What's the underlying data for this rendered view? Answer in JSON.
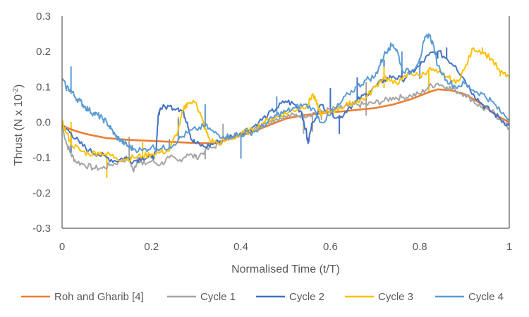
{
  "chart_data": {
    "type": "line",
    "xlabel": "Normalised Time (t/T)",
    "ylabel": {
      "base": "Thrust (N x 10",
      "sup": "-2",
      "end": ")"
    },
    "xlim": [
      0,
      1
    ],
    "ylim": [
      -0.3,
      0.3
    ],
    "x_ticks": [
      "0",
      "0.2",
      "0.4",
      "0.6",
      "0.8",
      "1"
    ],
    "y_ticks": [
      "0.3",
      "0.2",
      "0.1",
      "0.0",
      "-0.1",
      "-0.2",
      "-0.3"
    ],
    "grid": false,
    "legend_position": "bottom",
    "series": [
      {
        "name": "Roh and Gharib [4]",
        "color": "#ED7D31",
        "width": 2.6,
        "points": [
          [
            0,
            -0.01
          ],
          [
            0.03,
            -0.025
          ],
          [
            0.06,
            -0.035
          ],
          [
            0.1,
            -0.045
          ],
          [
            0.15,
            -0.05
          ],
          [
            0.2,
            -0.053
          ],
          [
            0.25,
            -0.056
          ],
          [
            0.3,
            -0.059
          ],
          [
            0.34,
            -0.06
          ],
          [
            0.38,
            -0.045
          ],
          [
            0.42,
            -0.03
          ],
          [
            0.46,
            -0.01
          ],
          [
            0.5,
            0.01
          ],
          [
            0.54,
            0.02
          ],
          [
            0.58,
            0.025
          ],
          [
            0.62,
            0.03
          ],
          [
            0.66,
            0.035
          ],
          [
            0.7,
            0.04
          ],
          [
            0.74,
            0.05
          ],
          [
            0.78,
            0.065
          ],
          [
            0.82,
            0.085
          ],
          [
            0.84,
            0.093
          ],
          [
            0.87,
            0.09
          ],
          [
            0.9,
            0.08
          ],
          [
            0.94,
            0.05
          ],
          [
            0.97,
            0.02
          ],
          [
            1.0,
            0.0
          ]
        ]
      },
      {
        "name": "Cycle 1",
        "color": "#A5A5A5",
        "width": 2,
        "points": [
          [
            0,
            -0.01
          ],
          [
            0.01,
            -0.06
          ],
          [
            0.02,
            -0.09
          ],
          [
            0.03,
            -0.11
          ],
          [
            0.05,
            -0.12
          ],
          [
            0.07,
            -0.13
          ],
          [
            0.09,
            -0.13
          ],
          [
            0.11,
            -0.12
          ],
          [
            0.13,
            -0.11
          ],
          [
            0.15,
            -0.1
          ],
          [
            0.16,
            -0.14
          ],
          [
            0.17,
            -0.1
          ],
          [
            0.18,
            -0.12
          ],
          [
            0.2,
            -0.11
          ],
          [
            0.22,
            -0.12
          ],
          [
            0.24,
            -0.1
          ],
          [
            0.26,
            -0.11
          ],
          [
            0.28,
            -0.09
          ],
          [
            0.3,
            -0.1
          ],
          [
            0.32,
            -0.08
          ],
          [
            0.34,
            -0.07
          ],
          [
            0.36,
            -0.05
          ],
          [
            0.38,
            -0.04
          ],
          [
            0.4,
            -0.03
          ],
          [
            0.42,
            -0.02
          ],
          [
            0.44,
            -0.01
          ],
          [
            0.46,
            0.0
          ],
          [
            0.48,
            0.01
          ],
          [
            0.5,
            0.015
          ],
          [
            0.52,
            0.02
          ],
          [
            0.54,
            0.02
          ],
          [
            0.56,
            0.025
          ],
          [
            0.58,
            0.03
          ],
          [
            0.6,
            0.035
          ],
          [
            0.62,
            0.04
          ],
          [
            0.64,
            0.045
          ],
          [
            0.66,
            0.05
          ],
          [
            0.68,
            0.05
          ],
          [
            0.7,
            0.055
          ],
          [
            0.72,
            0.06
          ],
          [
            0.74,
            0.07
          ],
          [
            0.76,
            0.07
          ],
          [
            0.78,
            0.075
          ],
          [
            0.8,
            0.08
          ],
          [
            0.82,
            0.1
          ],
          [
            0.84,
            0.11
          ],
          [
            0.86,
            0.1
          ],
          [
            0.88,
            0.09
          ],
          [
            0.9,
            0.08
          ],
          [
            0.92,
            0.06
          ],
          [
            0.94,
            0.04
          ],
          [
            0.96,
            0.03
          ],
          [
            0.98,
            0.01
          ],
          [
            1.0,
            -0.02
          ]
        ]
      },
      {
        "name": "Cycle 2",
        "color": "#4472C4",
        "width": 2,
        "points": [
          [
            0,
            -0.01
          ],
          [
            0.02,
            -0.03
          ],
          [
            0.04,
            -0.06
          ],
          [
            0.06,
            -0.08
          ],
          [
            0.08,
            -0.09
          ],
          [
            0.1,
            -0.1
          ],
          [
            0.12,
            -0.11
          ],
          [
            0.14,
            -0.1
          ],
          [
            0.16,
            -0.11
          ],
          [
            0.18,
            -0.1
          ],
          [
            0.2,
            -0.1
          ],
          [
            0.21,
            -0.09
          ],
          [
            0.215,
            0.02
          ],
          [
            0.22,
            0.04
          ],
          [
            0.24,
            0.045
          ],
          [
            0.26,
            0.04
          ],
          [
            0.27,
            0.03
          ],
          [
            0.28,
            0.0
          ],
          [
            0.29,
            -0.05
          ],
          [
            0.3,
            -0.06
          ],
          [
            0.32,
            -0.07
          ],
          [
            0.34,
            -0.06
          ],
          [
            0.36,
            -0.05
          ],
          [
            0.38,
            -0.04
          ],
          [
            0.4,
            -0.03
          ],
          [
            0.42,
            -0.02
          ],
          [
            0.44,
            0.0
          ],
          [
            0.46,
            0.02
          ],
          [
            0.48,
            0.04
          ],
          [
            0.5,
            0.06
          ],
          [
            0.52,
            0.05
          ],
          [
            0.535,
            0.03
          ],
          [
            0.545,
            -0.02
          ],
          [
            0.55,
            -0.06
          ],
          [
            0.56,
            0.0
          ],
          [
            0.58,
            0.05
          ],
          [
            0.6,
            0.03
          ],
          [
            0.62,
            0.01
          ],
          [
            0.64,
            0.04
          ],
          [
            0.66,
            0.06
          ],
          [
            0.68,
            0.08
          ],
          [
            0.7,
            0.1
          ],
          [
            0.72,
            0.12
          ],
          [
            0.74,
            0.13
          ],
          [
            0.76,
            0.12
          ],
          [
            0.78,
            0.14
          ],
          [
            0.8,
            0.16
          ],
          [
            0.82,
            0.19
          ],
          [
            0.84,
            0.2
          ],
          [
            0.86,
            0.18
          ],
          [
            0.88,
            0.16
          ],
          [
            0.9,
            0.12
          ],
          [
            0.92,
            0.08
          ],
          [
            0.94,
            0.05
          ],
          [
            0.96,
            0.03
          ],
          [
            0.98,
            0.01
          ],
          [
            1.0,
            -0.01
          ]
        ]
      },
      {
        "name": "Cycle 3",
        "color": "#FFC000",
        "width": 2,
        "points": [
          [
            0,
            0.0
          ],
          [
            0.01,
            -0.03
          ],
          [
            0.02,
            -0.06
          ],
          [
            0.04,
            -0.08
          ],
          [
            0.06,
            -0.09
          ],
          [
            0.08,
            -0.085
          ],
          [
            0.1,
            -0.09
          ],
          [
            0.12,
            -0.1
          ],
          [
            0.14,
            -0.105
          ],
          [
            0.16,
            -0.1
          ],
          [
            0.18,
            -0.095
          ],
          [
            0.2,
            -0.09
          ],
          [
            0.22,
            -0.085
          ],
          [
            0.24,
            -0.08
          ],
          [
            0.26,
            -0.02
          ],
          [
            0.27,
            0.03
          ],
          [
            0.28,
            0.055
          ],
          [
            0.3,
            0.055
          ],
          [
            0.31,
            0.02
          ],
          [
            0.32,
            -0.02
          ],
          [
            0.33,
            -0.05
          ],
          [
            0.35,
            -0.06
          ],
          [
            0.37,
            -0.05
          ],
          [
            0.39,
            -0.04
          ],
          [
            0.41,
            -0.03
          ],
          [
            0.43,
            -0.02
          ],
          [
            0.45,
            0.0
          ],
          [
            0.47,
            0.01
          ],
          [
            0.49,
            0.02
          ],
          [
            0.51,
            0.03
          ],
          [
            0.53,
            0.04
          ],
          [
            0.55,
            0.05
          ],
          [
            0.56,
            0.08
          ],
          [
            0.57,
            0.05
          ],
          [
            0.58,
            0.02
          ],
          [
            0.6,
            0.03
          ],
          [
            0.62,
            0.04
          ],
          [
            0.64,
            0.05
          ],
          [
            0.66,
            0.06
          ],
          [
            0.68,
            0.07
          ],
          [
            0.7,
            0.1
          ],
          [
            0.72,
            0.13
          ],
          [
            0.74,
            0.11
          ],
          [
            0.76,
            0.12
          ],
          [
            0.78,
            0.14
          ],
          [
            0.8,
            0.13
          ],
          [
            0.82,
            0.15
          ],
          [
            0.84,
            0.14
          ],
          [
            0.86,
            0.13
          ],
          [
            0.88,
            0.11
          ],
          [
            0.9,
            0.15
          ],
          [
            0.92,
            0.21
          ],
          [
            0.94,
            0.2
          ],
          [
            0.96,
            0.18
          ],
          [
            0.98,
            0.14
          ],
          [
            1.0,
            0.13
          ]
        ]
      },
      {
        "name": "Cycle 4",
        "color": "#5B9BD5",
        "width": 2,
        "points": [
          [
            0,
            0.12
          ],
          [
            0.01,
            0.1
          ],
          [
            0.02,
            0.09
          ],
          [
            0.03,
            0.07
          ],
          [
            0.04,
            0.06
          ],
          [
            0.05,
            0.045
          ],
          [
            0.06,
            0.035
          ],
          [
            0.07,
            0.025
          ],
          [
            0.08,
            0.02
          ],
          [
            0.09,
            0.01
          ],
          [
            0.1,
            0.0
          ],
          [
            0.11,
            -0.02
          ],
          [
            0.12,
            -0.04
          ],
          [
            0.13,
            -0.05
          ],
          [
            0.14,
            -0.06
          ],
          [
            0.15,
            -0.07
          ],
          [
            0.16,
            -0.075
          ],
          [
            0.18,
            -0.08
          ],
          [
            0.2,
            -0.07
          ],
          [
            0.22,
            -0.075
          ],
          [
            0.24,
            -0.07
          ],
          [
            0.26,
            -0.05
          ],
          [
            0.28,
            -0.03
          ],
          [
            0.3,
            -0.02
          ],
          [
            0.32,
            -0.01
          ],
          [
            0.34,
            -0.03
          ],
          [
            0.36,
            -0.04
          ],
          [
            0.38,
            -0.04
          ],
          [
            0.4,
            -0.035
          ],
          [
            0.42,
            -0.03
          ],
          [
            0.44,
            -0.02
          ],
          [
            0.46,
            0.0
          ],
          [
            0.48,
            0.02
          ],
          [
            0.5,
            0.03
          ],
          [
            0.52,
            0.04
          ],
          [
            0.54,
            0.05
          ],
          [
            0.56,
            0.04
          ],
          [
            0.58,
            0.0
          ],
          [
            0.6,
            0.02
          ],
          [
            0.62,
            0.05
          ],
          [
            0.64,
            0.08
          ],
          [
            0.66,
            0.1
          ],
          [
            0.68,
            0.12
          ],
          [
            0.7,
            0.13
          ],
          [
            0.71,
            0.16
          ],
          [
            0.72,
            0.19
          ],
          [
            0.73,
            0.21
          ],
          [
            0.74,
            0.22
          ],
          [
            0.75,
            0.2
          ],
          [
            0.76,
            0.15
          ],
          [
            0.78,
            0.14
          ],
          [
            0.8,
            0.18
          ],
          [
            0.81,
            0.23
          ],
          [
            0.82,
            0.25
          ],
          [
            0.83,
            0.22
          ],
          [
            0.84,
            0.16
          ],
          [
            0.86,
            0.12
          ],
          [
            0.88,
            0.1
          ],
          [
            0.9,
            0.11
          ],
          [
            0.92,
            0.09
          ],
          [
            0.94,
            0.08
          ],
          [
            0.96,
            0.06
          ],
          [
            0.98,
            0.03
          ],
          [
            1.0,
            0.01
          ]
        ]
      }
    ]
  }
}
